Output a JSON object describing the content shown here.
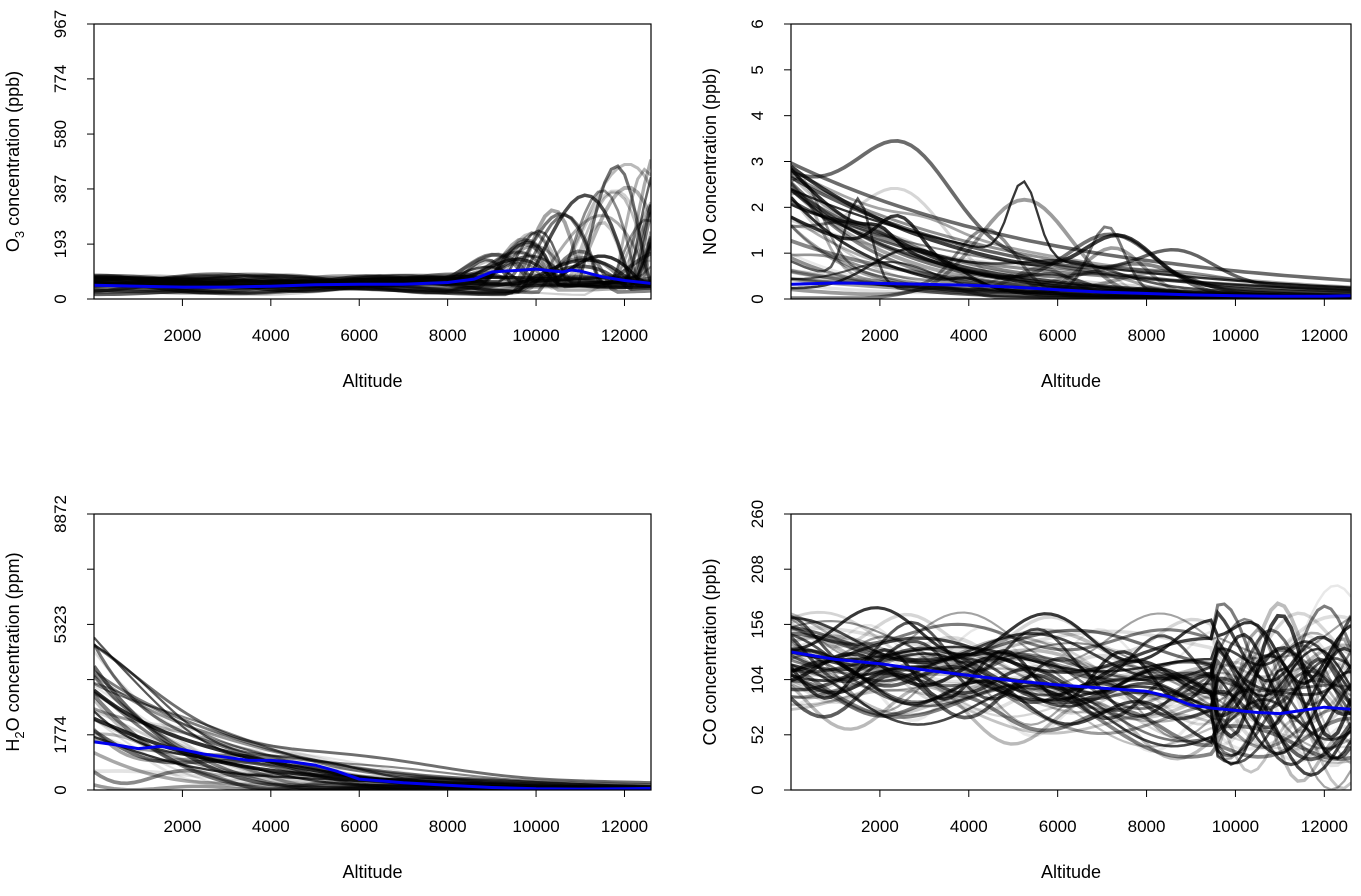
{
  "chart_data": [
    {
      "type": "line",
      "title": "",
      "xlabel": "Altitude",
      "ylabel": "O3 concentration (ppb)",
      "ylabel_parts": {
        "pre": "O",
        "sub": "3",
        "post": " concentration (ppb)"
      },
      "xlim": [
        0,
        12600
      ],
      "ylim": [
        0,
        967
      ],
      "xticks": [
        2000,
        4000,
        6000,
        8000,
        10000,
        12000
      ],
      "yticks": [
        0,
        193,
        387,
        580,
        774,
        967
      ],
      "background_profiles_color": "#000000",
      "mean_series": {
        "color": "#0000ee",
        "x": [
          0,
          1000,
          2000,
          3000,
          4000,
          5000,
          6000,
          7000,
          8000,
          8600,
          9000,
          9500,
          10000,
          10300,
          10600,
          10800,
          11000,
          11500,
          12000,
          12600
        ],
        "y": [
          48,
          45,
          42,
          42,
          45,
          50,
          52,
          52,
          58,
          70,
          95,
          100,
          105,
          100,
          95,
          102,
          98,
          78,
          65,
          55
        ]
      }
    },
    {
      "type": "line",
      "title": "",
      "xlabel": "Altitude",
      "ylabel": "NO concentration (ppb)",
      "ylabel_parts": {
        "pre": "NO concentration (ppb)",
        "sub": "",
        "post": ""
      },
      "xlim": [
        0,
        12600
      ],
      "ylim": [
        0,
        6
      ],
      "xticks": [
        2000,
        4000,
        6000,
        8000,
        10000,
        12000
      ],
      "yticks": [
        0,
        1,
        2,
        3,
        4,
        5,
        6
      ],
      "background_profiles_color": "#000000",
      "mean_series": {
        "color": "#0000ee",
        "x": [
          0,
          1000,
          2000,
          3000,
          4000,
          5000,
          6000,
          7000,
          8000,
          9000,
          10000,
          11000,
          12000,
          12600
        ],
        "y": [
          0.32,
          0.35,
          0.34,
          0.32,
          0.3,
          0.26,
          0.2,
          0.15,
          0.12,
          0.09,
          0.07,
          0.06,
          0.06,
          0.07
        ]
      }
    },
    {
      "type": "line",
      "title": "",
      "xlabel": "Altitude",
      "ylabel": "H2O concentration (ppm)",
      "ylabel_parts": {
        "pre": "H",
        "sub": "2",
        "post": "O concentration (ppm)"
      },
      "xlim": [
        0,
        12600
      ],
      "ylim": [
        0,
        8872
      ],
      "xticks": [
        2000,
        4000,
        6000,
        8000,
        10000,
        12000
      ],
      "yticks": [
        0,
        1774,
        3549,
        5323,
        7098,
        8872
      ],
      "ytick_labels": [
        "0",
        "1774",
        "",
        "5323",
        "",
        "8872"
      ],
      "background_profiles_color": "#000000",
      "mean_series": {
        "color": "#0000ee",
        "x": [
          0,
          500,
          1000,
          1500,
          2000,
          2500,
          3000,
          3500,
          4000,
          4500,
          5000,
          5500,
          6000,
          7000,
          8000,
          9000,
          10000,
          11000,
          12000,
          12600
        ],
        "y": [
          1550,
          1450,
          1330,
          1400,
          1300,
          1150,
          1050,
          950,
          950,
          900,
          800,
          600,
          350,
          230,
          150,
          80,
          40,
          30,
          40,
          50
        ]
      }
    },
    {
      "type": "line",
      "title": "",
      "xlabel": "Altitude",
      "ylabel": "CO concentration (ppb)",
      "ylabel_parts": {
        "pre": "CO concentration (ppb)",
        "sub": "",
        "post": ""
      },
      "xlim": [
        0,
        12600
      ],
      "ylim": [
        0,
        260
      ],
      "xticks": [
        2000,
        4000,
        6000,
        8000,
        10000,
        12000
      ],
      "yticks": [
        0,
        52,
        104,
        156,
        208,
        260
      ],
      "background_profiles_color": "#000000",
      "mean_series": {
        "color": "#0000ee",
        "x": [
          0,
          1000,
          2000,
          3000,
          4000,
          5000,
          6000,
          7000,
          8000,
          8500,
          9000,
          9500,
          10000,
          10500,
          11000,
          11500,
          12000,
          12600
        ],
        "y": [
          130,
          123,
          119,
          113,
          108,
          103,
          99,
          96,
          93,
          88,
          80,
          77,
          75,
          73,
          72,
          75,
          78,
          76
        ]
      }
    }
  ]
}
